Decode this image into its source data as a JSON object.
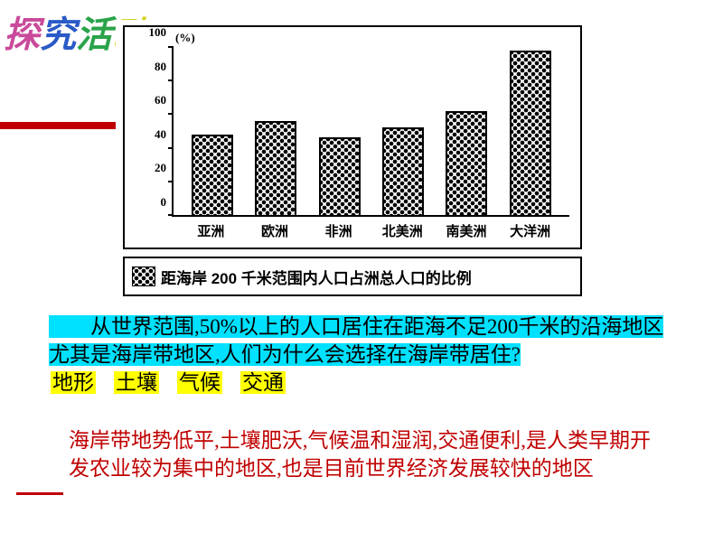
{
  "title": {
    "c1": "探",
    "c2": "究",
    "c3": "活",
    "c4": "动"
  },
  "chart": {
    "type": "bar",
    "y_unit": "(%)",
    "y_ticks": [
      0,
      20,
      40,
      60,
      80,
      100
    ],
    "ylim": [
      0,
      100
    ],
    "categories": [
      "亚洲",
      "欧洲",
      "非洲",
      "北美洲",
      "南美洲",
      "大洋洲"
    ],
    "values": [
      48,
      56,
      46,
      52,
      62,
      98
    ],
    "bar_border_color": "#000000",
    "pattern": "checker-dots",
    "background_color": "#ffffff",
    "legend": "距海岸 200 千米范围内人口占洲总人口的比例",
    "x_fontsize": 15,
    "y_fontsize": 13,
    "legend_fontsize": 17
  },
  "question": {
    "prefix": "　　从世界范围,50%以上的人口居住在距海不足200千米的沿海地区尤其是海岸带地区,人们为什么会选择在海岸带居住?",
    "tags": [
      "地形",
      "土壤",
      "气候",
      "交通"
    ]
  },
  "answer": "海岸带地势低平,土壤肥沃,气候温和湿润,交通便利,是人类早期开发农业较为集中的地区,也是目前世界经济发展较快的地区",
  "colors": {
    "accent_red": "#c00000",
    "highlight_cyan": "#00e0ff",
    "highlight_yellow": "#ffff00"
  }
}
